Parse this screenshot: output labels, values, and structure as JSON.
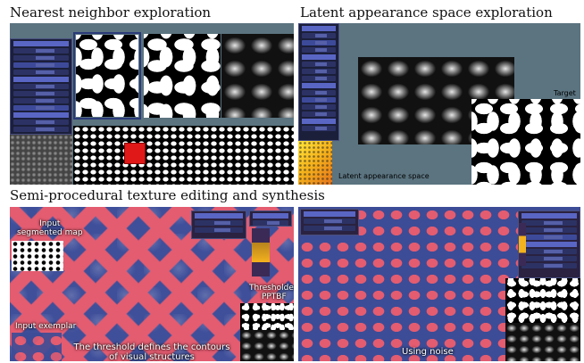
{
  "sections": {
    "nearest": {
      "title": "Nearest neighbor exploration"
    },
    "latent": {
      "title": "Latent appearance space exploration",
      "target_label": "Target",
      "space_label": "Latent appearance space"
    },
    "semi": {
      "title": "Semi-procedural texture editing and synthesis",
      "input_map_label": "Input\nsegmented map",
      "input_exemplar_label": "Input exemplar",
      "thresholded_label": "Thresholded\nPPTBF",
      "threshold_caption": "The threshold defines the contours\nof visual structures",
      "noise_caption": "Using noise"
    }
  },
  "colors": {
    "viewport_bg": "#5b7480",
    "sidebar_bg": "#1b1f3a",
    "texture_pink": "#e35c70",
    "texture_blue": "#3f4f9a",
    "selection_red": "#e11818"
  }
}
